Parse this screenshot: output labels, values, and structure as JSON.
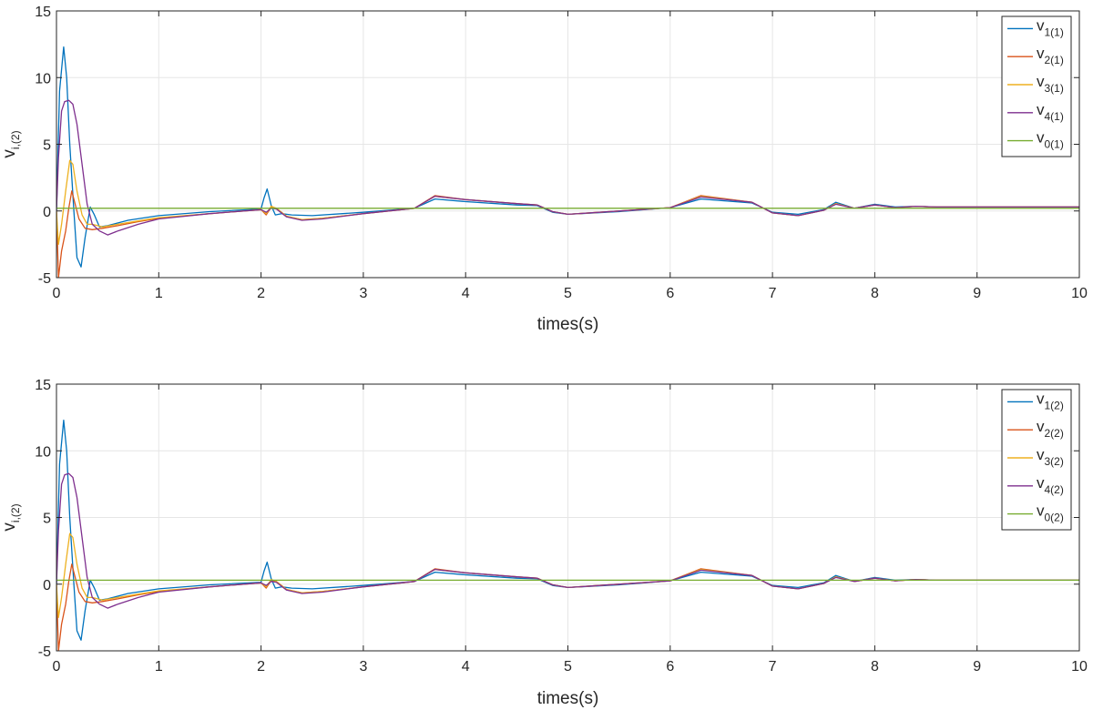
{
  "chart_data": [
    {
      "type": "line",
      "xlabel": "times(s)",
      "ylabel": {
        "base": "v",
        "sub": "i,(2)"
      },
      "xlim": [
        0,
        10
      ],
      "ylim": [
        -5,
        15
      ],
      "xticks": [
        0,
        1,
        2,
        3,
        4,
        5,
        6,
        7,
        8,
        9,
        10
      ],
      "yticks": [
        -5,
        0,
        5,
        10,
        15
      ],
      "grid": true,
      "legend_position": "top-right",
      "series": [
        {
          "name": "v1(1)",
          "label_base": "v",
          "label_sub": "1(1)",
          "color": "#0072bd",
          "x": [
            0,
            0.03,
            0.07,
            0.1,
            0.13,
            0.17,
            0.2,
            0.24,
            0.28,
            0.33,
            0.37,
            0.42,
            0.5,
            0.7,
            1.0,
            1.5,
            2.0,
            2.03,
            2.06,
            2.1,
            2.14,
            2.2,
            2.3,
            2.5,
            3.0,
            3.5,
            3.7,
            4.0,
            4.5,
            4.7,
            4.85,
            5.0,
            5.5,
            6.0,
            6.3,
            6.8,
            7.0,
            7.25,
            7.5,
            7.62,
            7.8,
            8.0,
            8.05,
            8.2,
            8.4,
            8.6,
            9.0,
            10.0
          ],
          "y": [
            0,
            9,
            12.3,
            10,
            5,
            0,
            -3.5,
            -4.2,
            -2,
            0.3,
            -0.3,
            -1.2,
            -1.1,
            -0.7,
            -0.35,
            -0.05,
            0.15,
            1.0,
            1.65,
            0.4,
            -0.3,
            -0.2,
            -0.3,
            -0.35,
            -0.1,
            0.2,
            0.9,
            0.7,
            0.45,
            0.4,
            -0.1,
            -0.25,
            -0.05,
            0.25,
            0.9,
            0.6,
            -0.1,
            -0.25,
            0.1,
            0.65,
            0.2,
            0.5,
            0.45,
            0.3,
            0.35,
            0.3,
            0.3,
            0.3
          ]
        },
        {
          "name": "v2(1)",
          "label_base": "v",
          "label_sub": "2(1)",
          "color": "#d95319",
          "x": [
            0,
            0.02,
            0.05,
            0.09,
            0.12,
            0.15,
            0.18,
            0.22,
            0.28,
            0.35,
            0.45,
            0.6,
            0.8,
            1.0,
            1.5,
            2.0,
            2.05,
            2.1,
            2.15,
            2.25,
            2.4,
            2.6,
            3.0,
            3.5,
            3.7,
            4.0,
            4.5,
            4.7,
            4.85,
            5.0,
            5.5,
            6.0,
            6.3,
            6.8,
            7.0,
            7.25,
            7.5,
            7.62,
            7.8,
            8.0,
            8.05,
            8.2,
            8.4,
            8.6,
            9.0,
            10.0
          ],
          "y": [
            0,
            -5,
            -3,
            -1.5,
            0.2,
            1.5,
            0.6,
            -0.6,
            -1.3,
            -1.4,
            -1.3,
            -1.1,
            -0.8,
            -0.55,
            -0.2,
            0.1,
            -0.3,
            0.3,
            0.2,
            -0.4,
            -0.65,
            -0.55,
            -0.2,
            0.2,
            1.15,
            0.85,
            0.55,
            0.45,
            -0.05,
            -0.25,
            0,
            0.25,
            1.15,
            0.65,
            -0.15,
            -0.35,
            0.05,
            0.55,
            0.2,
            0.45,
            0.4,
            0.25,
            0.35,
            0.3,
            0.3,
            0.3
          ]
        },
        {
          "name": "v3(1)",
          "label_base": "v",
          "label_sub": "3(1)",
          "color": "#edb120",
          "x": [
            0,
            0.02,
            0.05,
            0.09,
            0.13,
            0.16,
            0.2,
            0.25,
            0.3,
            0.35,
            0.45,
            0.6,
            0.8,
            1.0,
            1.5,
            2.0,
            2.05,
            2.1,
            2.15,
            2.25,
            2.4,
            2.6,
            3.0,
            3.5,
            3.7,
            4.0,
            4.5,
            4.7,
            4.85,
            5.0,
            5.5,
            6.0,
            6.3,
            6.8,
            7.0,
            7.25,
            7.5,
            7.62,
            7.8,
            8.0,
            8.05,
            8.2,
            8.4,
            8.6,
            9.0,
            10.0
          ],
          "y": [
            0,
            -2.5,
            -1,
            1.5,
            3.8,
            3.5,
            1.5,
            -0.3,
            -1,
            -1,
            -1.2,
            -1,
            -0.75,
            -0.5,
            -0.2,
            0.1,
            -0.2,
            0.35,
            0.2,
            -0.4,
            -0.65,
            -0.55,
            -0.2,
            0.2,
            1.1,
            0.85,
            0.55,
            0.45,
            -0.05,
            -0.25,
            0,
            0.25,
            1.1,
            0.65,
            -0.15,
            -0.35,
            0.05,
            0.55,
            0.2,
            0.45,
            0.4,
            0.25,
            0.35,
            0.3,
            0.3,
            0.3
          ]
        },
        {
          "name": "v4(1)",
          "label_base": "v",
          "label_sub": "4(1)",
          "color": "#7e2f8e",
          "x": [
            0,
            0.02,
            0.05,
            0.08,
            0.12,
            0.16,
            0.2,
            0.25,
            0.3,
            0.35,
            0.42,
            0.5,
            0.6,
            0.8,
            1.0,
            1.5,
            2.0,
            2.05,
            2.1,
            2.15,
            2.25,
            2.4,
            2.6,
            3.0,
            3.5,
            3.7,
            4.0,
            4.5,
            4.7,
            4.85,
            5.0,
            5.5,
            6.0,
            6.3,
            6.8,
            7.0,
            7.25,
            7.5,
            7.62,
            7.8,
            8.0,
            8.05,
            8.2,
            8.4,
            8.6,
            9.0,
            10.0
          ],
          "y": [
            0,
            4,
            7.5,
            8.2,
            8.3,
            8,
            6.5,
            3.5,
            0.5,
            -1,
            -1.5,
            -1.8,
            -1.5,
            -1,
            -0.6,
            -0.2,
            0.1,
            -0.1,
            0.2,
            0.15,
            -0.45,
            -0.7,
            -0.6,
            -0.2,
            0.2,
            1.1,
            0.85,
            0.55,
            0.45,
            -0.05,
            -0.25,
            0,
            0.25,
            1.05,
            0.65,
            -0.15,
            -0.35,
            0.05,
            0.5,
            0.2,
            0.45,
            0.4,
            0.25,
            0.35,
            0.3,
            0.3,
            0.3
          ]
        },
        {
          "name": "v0(1)",
          "label_base": "v",
          "label_sub": "0(1)",
          "color": "#77ac30",
          "x": [
            0,
            10
          ],
          "y": [
            0.2,
            0.2
          ]
        }
      ]
    },
    {
      "type": "line",
      "xlabel": "times(s)",
      "ylabel": {
        "base": "v",
        "sub": "i,(2)"
      },
      "xlim": [
        0,
        10
      ],
      "ylim": [
        -5,
        15
      ],
      "xticks": [
        0,
        1,
        2,
        3,
        4,
        5,
        6,
        7,
        8,
        9,
        10
      ],
      "yticks": [
        -5,
        0,
        5,
        10,
        15
      ],
      "grid": true,
      "legend_position": "right",
      "series": [
        {
          "name": "v1(2)",
          "label_base": "v",
          "label_sub": "1(2)",
          "color": "#0072bd",
          "x": [
            0,
            0.03,
            0.07,
            0.1,
            0.13,
            0.17,
            0.2,
            0.24,
            0.28,
            0.33,
            0.37,
            0.42,
            0.5,
            0.7,
            1.0,
            1.5,
            2.0,
            2.03,
            2.06,
            2.1,
            2.14,
            2.2,
            2.3,
            2.5,
            3.0,
            3.5,
            3.7,
            4.0,
            4.5,
            4.7,
            4.85,
            5.0,
            5.5,
            6.0,
            6.3,
            6.8,
            7.0,
            7.25,
            7.5,
            7.62,
            7.8,
            8.0,
            8.05,
            8.2,
            8.4,
            8.6,
            9.0,
            10.0
          ],
          "y": [
            0,
            9,
            12.3,
            10,
            5,
            0,
            -3.5,
            -4.2,
            -2,
            0.3,
            -0.3,
            -1.2,
            -1.1,
            -0.7,
            -0.35,
            -0.05,
            0.15,
            1.0,
            1.65,
            0.4,
            -0.3,
            -0.2,
            -0.3,
            -0.35,
            -0.1,
            0.2,
            0.9,
            0.7,
            0.45,
            0.4,
            -0.1,
            -0.25,
            -0.05,
            0.25,
            0.9,
            0.6,
            -0.1,
            -0.25,
            0.1,
            0.65,
            0.2,
            0.5,
            0.45,
            0.3,
            0.35,
            0.3,
            0.3,
            0.3
          ]
        },
        {
          "name": "v2(2)",
          "label_base": "v",
          "label_sub": "2(2)",
          "color": "#d95319",
          "x": [
            0,
            0.02,
            0.05,
            0.09,
            0.12,
            0.15,
            0.18,
            0.22,
            0.28,
            0.35,
            0.45,
            0.6,
            0.8,
            1.0,
            1.5,
            2.0,
            2.05,
            2.1,
            2.15,
            2.25,
            2.4,
            2.6,
            3.0,
            3.5,
            3.7,
            4.0,
            4.5,
            4.7,
            4.85,
            5.0,
            5.5,
            6.0,
            6.3,
            6.8,
            7.0,
            7.25,
            7.5,
            7.62,
            7.8,
            8.0,
            8.05,
            8.2,
            8.4,
            8.6,
            9.0,
            10.0
          ],
          "y": [
            0,
            -5,
            -3,
            -1.5,
            0.2,
            1.5,
            0.6,
            -0.6,
            -1.3,
            -1.4,
            -1.3,
            -1.1,
            -0.8,
            -0.55,
            -0.2,
            0.1,
            -0.3,
            0.3,
            0.2,
            -0.4,
            -0.65,
            -0.55,
            -0.2,
            0.2,
            1.15,
            0.85,
            0.55,
            0.45,
            -0.05,
            -0.25,
            0,
            0.25,
            1.15,
            0.65,
            -0.15,
            -0.35,
            0.05,
            0.55,
            0.2,
            0.45,
            0.4,
            0.25,
            0.35,
            0.3,
            0.3,
            0.3
          ]
        },
        {
          "name": "v3(2)",
          "label_base": "v",
          "label_sub": "3(2)",
          "color": "#edb120",
          "x": [
            0,
            0.02,
            0.05,
            0.09,
            0.13,
            0.16,
            0.2,
            0.25,
            0.3,
            0.35,
            0.45,
            0.6,
            0.8,
            1.0,
            1.5,
            2.0,
            2.05,
            2.1,
            2.15,
            2.25,
            2.4,
            2.6,
            3.0,
            3.5,
            3.7,
            4.0,
            4.5,
            4.7,
            4.85,
            5.0,
            5.5,
            6.0,
            6.3,
            6.8,
            7.0,
            7.25,
            7.5,
            7.62,
            7.8,
            8.0,
            8.05,
            8.2,
            8.4,
            8.6,
            9.0,
            10.0
          ],
          "y": [
            0,
            -2.5,
            -1,
            1.5,
            3.8,
            3.5,
            1.5,
            -0.3,
            -1,
            -1,
            -1.2,
            -1,
            -0.75,
            -0.5,
            -0.2,
            0.1,
            -0.2,
            0.35,
            0.2,
            -0.4,
            -0.65,
            -0.55,
            -0.2,
            0.2,
            1.1,
            0.85,
            0.55,
            0.45,
            -0.05,
            -0.25,
            0,
            0.25,
            1.1,
            0.65,
            -0.15,
            -0.35,
            0.05,
            0.55,
            0.2,
            0.45,
            0.4,
            0.25,
            0.35,
            0.3,
            0.3,
            0.3
          ]
        },
        {
          "name": "v4(2)",
          "label_base": "v",
          "label_sub": "4(2)",
          "color": "#7e2f8e",
          "x": [
            0,
            0.02,
            0.05,
            0.08,
            0.12,
            0.16,
            0.2,
            0.25,
            0.3,
            0.35,
            0.42,
            0.5,
            0.6,
            0.8,
            1.0,
            1.5,
            2.0,
            2.05,
            2.1,
            2.15,
            2.25,
            2.4,
            2.6,
            3.0,
            3.5,
            3.7,
            4.0,
            4.5,
            4.7,
            4.85,
            5.0,
            5.5,
            6.0,
            6.3,
            6.8,
            7.0,
            7.25,
            7.5,
            7.62,
            7.8,
            8.0,
            8.05,
            8.2,
            8.4,
            8.6,
            9.0,
            10.0
          ],
          "y": [
            0,
            4,
            7.5,
            8.2,
            8.3,
            8,
            6.5,
            3.5,
            0.5,
            -1,
            -1.5,
            -1.8,
            -1.5,
            -1,
            -0.6,
            -0.2,
            0.1,
            -0.1,
            0.2,
            0.15,
            -0.45,
            -0.7,
            -0.6,
            -0.2,
            0.2,
            1.1,
            0.85,
            0.55,
            0.45,
            -0.05,
            -0.25,
            0,
            0.25,
            1.05,
            0.65,
            -0.15,
            -0.35,
            0.05,
            0.5,
            0.2,
            0.45,
            0.4,
            0.25,
            0.35,
            0.3,
            0.3,
            0.3
          ]
        },
        {
          "name": "v0(2)",
          "label_base": "v",
          "label_sub": "0(2)",
          "color": "#77ac30",
          "x": [
            0,
            10
          ],
          "y": [
            0.3,
            0.3
          ]
        }
      ]
    }
  ]
}
